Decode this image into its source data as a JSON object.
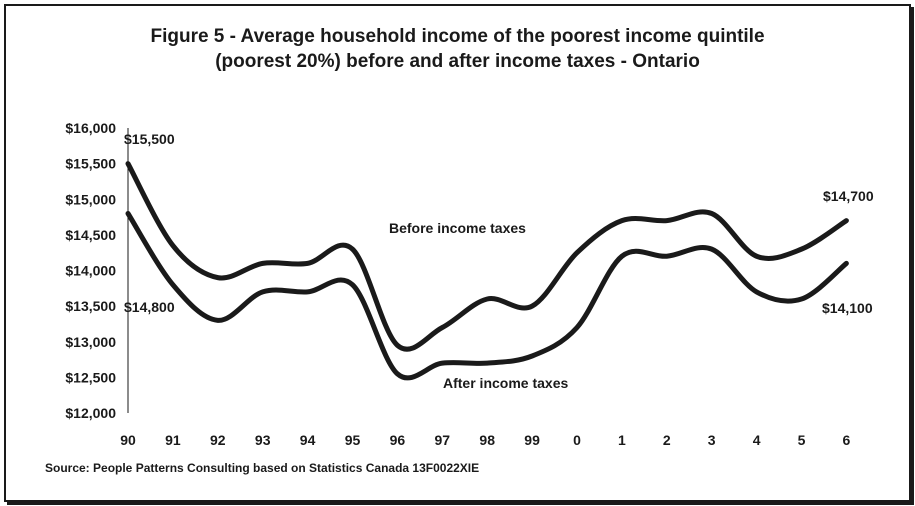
{
  "chart_data": {
    "type": "line",
    "title_line1": "Figure 5 - Average household income of the poorest income quintile",
    "title_line2": "(poorest 20%) before and after income taxes - Ontario",
    "categories": [
      "90",
      "91",
      "92",
      "93",
      "94",
      "95",
      "96",
      "97",
      "98",
      "99",
      "0",
      "1",
      "2",
      "3",
      "4",
      "5",
      "6"
    ],
    "ylim": [
      12000,
      16000
    ],
    "y_ticks": [
      "$12,000",
      "$12,500",
      "$13,000",
      "$13,500",
      "$14,000",
      "$14,500",
      "$15,000",
      "$15,500",
      "$16,000"
    ],
    "grid": false,
    "series": [
      {
        "name": "Before income taxes",
        "values": [
          15500,
          14350,
          13900,
          14100,
          14100,
          14300,
          12950,
          13200,
          13600,
          13500,
          14250,
          14700,
          14700,
          14800,
          14200,
          14300,
          14700
        ]
      },
      {
        "name": "After income taxes",
        "values": [
          14800,
          13800,
          13300,
          13700,
          13700,
          13800,
          12550,
          12700,
          12700,
          12800,
          13200,
          14200,
          14200,
          14300,
          13700,
          13600,
          14100
        ]
      }
    ],
    "annotations": {
      "before_start": "$15,500",
      "after_start": "$14,800",
      "before_end": "$14,700",
      "after_end": "$14,100"
    },
    "source": "Source: People Patterns Consulting based on Statistics Canada 13F0022XIE"
  },
  "colors": {
    "line": "#1a1a1a",
    "frame": "#1a1a1a",
    "background": "#ffffff"
  }
}
